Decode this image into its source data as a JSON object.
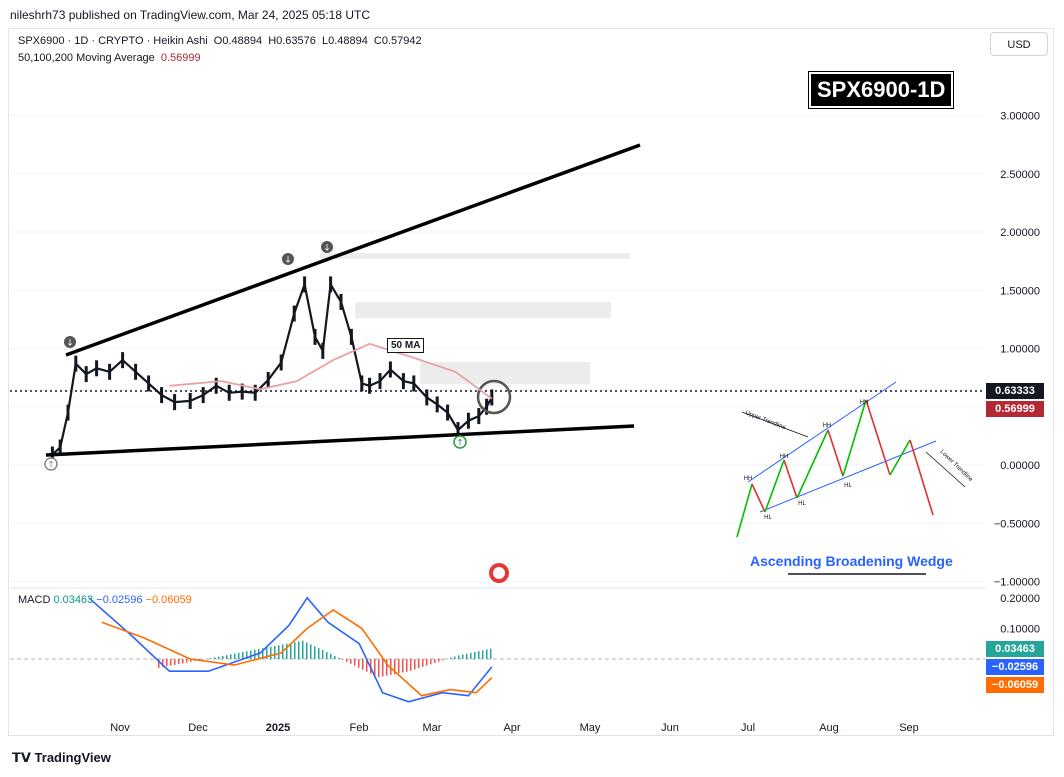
{
  "attribution": "nileshrh73 published on TradingView.com, Mar 24, 2025 05:18 UTC",
  "legend": {
    "symbol": "SPX6900 · 1D · CRYPTO · Heikin Ashi",
    "open": "O0.48894",
    "high": "H0.63576",
    "low": "L0.48894",
    "close": "C0.57942",
    "ma_label": "50,100,200 Moving Average",
    "ma_value": "0.56999"
  },
  "currency": "USD",
  "title_box": "SPX6900-1D",
  "ma_tag": "50 MA",
  "price_badge": "0.63333",
  "ma_badge": "0.56999",
  "macd_legend": {
    "label": "MACD",
    "hist": "0.03463",
    "macd": "−0.02596",
    "signal": "−0.06059"
  },
  "macd_badges": {
    "hist": "0.03463",
    "macd": "−0.02596",
    "signal": "−0.06059"
  },
  "wedge_caption": "Ascending Broadening Wedge",
  "inset_labels": {
    "upper_trendline": "Upper Trendline",
    "lower_trendline": "Lower Trendline"
  },
  "footer": "TradingView",
  "colors": {
    "price_line": "#131722",
    "ma_line": "#e8a1a6",
    "ma_badge": "#b22833",
    "macd_line": "#2962ff",
    "signal_line": "#ff6d00",
    "hist_pos": "#26a69a",
    "hist_neg": "#ef5350",
    "wedge_up": "#00c000",
    "wedge_down": "#e03030",
    "trend_blue": "#2962ff"
  },
  "chart_data": [
    {
      "type": "line",
      "title": "SPX6900 · 1D · CRYPTO · Heikin Ashi",
      "x_ticks": [
        "Nov",
        "Dec",
        "2025",
        "Feb",
        "Mar",
        "Apr",
        "May",
        "Jun",
        "Jul",
        "Aug",
        "Sep"
      ],
      "y_ticks": [
        "3.00000",
        "2.50000",
        "2.00000",
        "1.50000",
        "1.00000",
        "0.00000",
        "−0.50000",
        "−1.00000"
      ],
      "ylim": [
        -1.0,
        3.35
      ],
      "series": [
        {
          "name": "SPX6900",
          "dates": [
            "2024-10-06",
            "2024-10-09",
            "2024-10-12",
            "2024-10-15",
            "2024-10-19",
            "2024-10-23",
            "2024-10-28",
            "2024-11-02",
            "2024-11-07",
            "2024-11-12",
            "2024-11-17",
            "2024-11-22",
            "2024-11-28",
            "2024-12-03",
            "2024-12-08",
            "2024-12-13",
            "2024-12-18",
            "2024-12-23",
            "2024-12-28",
            "2025-01-02",
            "2025-01-07",
            "2025-01-11",
            "2025-01-15",
            "2025-01-18",
            "2025-01-21",
            "2025-01-25",
            "2025-01-29",
            "2025-02-02",
            "2025-02-05",
            "2025-02-09",
            "2025-02-13",
            "2025-02-18",
            "2025-02-22",
            "2025-02-27",
            "2025-03-03",
            "2025-03-07",
            "2025-03-11",
            "2025-03-15",
            "2025-03-19",
            "2025-03-22",
            "2025-03-24"
          ],
          "values": [
            0.09,
            0.15,
            0.45,
            0.87,
            0.78,
            0.83,
            0.8,
            0.9,
            0.8,
            0.7,
            0.6,
            0.54,
            0.55,
            0.6,
            0.68,
            0.62,
            0.63,
            0.62,
            0.73,
            0.88,
            1.3,
            1.55,
            1.1,
            0.98,
            1.55,
            1.4,
            1.1,
            0.7,
            0.68,
            0.72,
            0.82,
            0.72,
            0.7,
            0.58,
            0.52,
            0.45,
            0.3,
            0.38,
            0.42,
            0.5,
            0.58
          ]
        },
        {
          "name": "50,100,200 Moving Average",
          "dates": [
            "2024-11-20",
            "2024-12-10",
            "2024-12-25",
            "2025-01-08",
            "2025-01-22",
            "2025-02-05",
            "2025-02-22",
            "2025-03-10",
            "2025-03-24"
          ],
          "values": [
            0.68,
            0.72,
            0.65,
            0.72,
            0.9,
            1.04,
            0.92,
            0.8,
            0.57
          ]
        }
      ]
    },
    {
      "type": "line",
      "title": "MACD",
      "y_ticks": [
        "0.20000",
        "0.10000"
      ],
      "ylim": [
        -0.22,
        0.22
      ],
      "series": [
        {
          "name": "MACD",
          "dates": [
            "2024-10-20",
            "2024-11-05",
            "2024-11-20",
            "2024-12-05",
            "2024-12-25",
            "2025-01-05",
            "2025-01-12",
            "2025-01-20",
            "2025-02-01",
            "2025-02-10",
            "2025-02-20",
            "2025-03-05",
            "2025-03-15",
            "2025-03-24"
          ],
          "values": [
            0.2,
            0.08,
            -0.04,
            -0.04,
            0.02,
            0.11,
            0.2,
            0.12,
            0.05,
            -0.11,
            -0.14,
            -0.11,
            -0.12,
            -0.026
          ]
        },
        {
          "name": "Signal",
          "dates": [
            "2024-10-25",
            "2024-11-10",
            "2024-11-28",
            "2024-12-15",
            "2025-01-02",
            "2025-01-12",
            "2025-01-22",
            "2025-02-02",
            "2025-02-12",
            "2025-02-25",
            "2025-03-08",
            "2025-03-18",
            "2025-03-24"
          ],
          "values": [
            0.12,
            0.07,
            0.0,
            -0.02,
            0.02,
            0.1,
            0.16,
            0.1,
            -0.02,
            -0.12,
            -0.1,
            -0.11,
            -0.061
          ]
        },
        {
          "name": "Histogram",
          "dates": [
            "2024-11-15",
            "2024-12-10",
            "2025-01-10",
            "2025-01-20",
            "2025-02-08",
            "2025-02-20",
            "2025-03-10",
            "2025-03-24"
          ],
          "values": [
            -0.03,
            0.01,
            0.06,
            0.02,
            -0.06,
            -0.04,
            0.01,
            0.035
          ]
        }
      ]
    }
  ]
}
